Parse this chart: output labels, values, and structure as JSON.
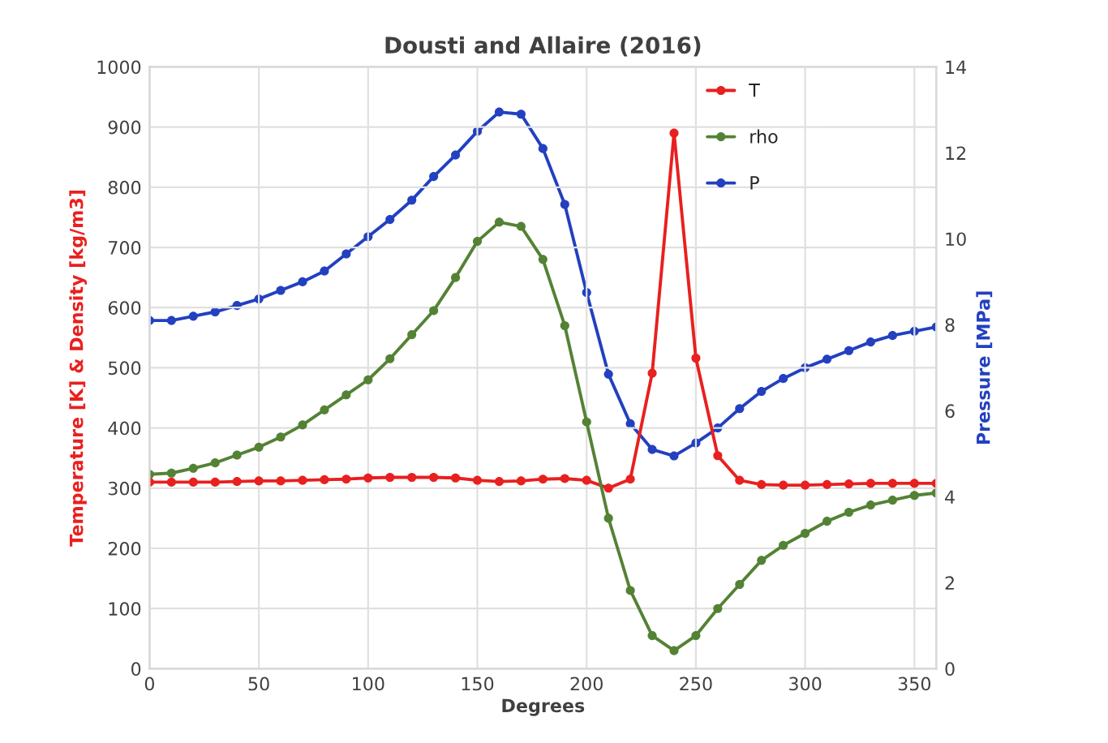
{
  "chart_data": {
    "type": "line",
    "title": "Dousti and Allaire (2016)",
    "xlabel": "Degrees",
    "ylabel": "Temperature [K] & Density [kg/m3]",
    "y2label": "Pressure [MPa]",
    "x": [
      0,
      10,
      20,
      30,
      40,
      50,
      60,
      70,
      80,
      90,
      100,
      110,
      120,
      130,
      140,
      150,
      160,
      170,
      180,
      190,
      200,
      210,
      220,
      230,
      240,
      250,
      260,
      270,
      280,
      290,
      300,
      310,
      320,
      330,
      340,
      350,
      360
    ],
    "series": [
      {
        "name": "T",
        "color": "#e8201f",
        "values": [
          310,
          310,
          310,
          310,
          311,
          312,
          312,
          313,
          314,
          315,
          317,
          318,
          318,
          318,
          317,
          313,
          311,
          312,
          315,
          316,
          313,
          300,
          315,
          491,
          890,
          516,
          354,
          313,
          306,
          305,
          305,
          306,
          307,
          308,
          308,
          308,
          308
        ]
      },
      {
        "name": "rho",
        "color": "#548235",
        "values": [
          323,
          325,
          333,
          342,
          355,
          368,
          385,
          405,
          430,
          455,
          480,
          515,
          555,
          595,
          650,
          710,
          742,
          735,
          680,
          570,
          410,
          250,
          130,
          55,
          30,
          55,
          100,
          140,
          180,
          205,
          225,
          245,
          260,
          272,
          280,
          288,
          292
        ]
      },
      {
        "name": "P",
        "color": "#2240c0",
        "axis": "y2",
        "values": [
          8.1,
          8.1,
          8.2,
          8.3,
          8.45,
          8.6,
          8.8,
          9.0,
          9.25,
          9.65,
          10.05,
          10.45,
          10.9,
          11.45,
          11.95,
          12.5,
          12.95,
          12.9,
          12.1,
          10.8,
          8.75,
          6.85,
          5.7,
          5.1,
          4.95,
          5.25,
          5.6,
          6.05,
          6.45,
          6.75,
          7.0,
          7.2,
          7.4,
          7.6,
          7.75,
          7.85,
          7.95
        ]
      }
    ],
    "xlim": [
      0,
      360
    ],
    "xticks": [
      0,
      50,
      100,
      150,
      200,
      250,
      300,
      350
    ],
    "ylim": [
      0,
      1000
    ],
    "yticks": [
      0,
      100,
      200,
      300,
      400,
      500,
      600,
      700,
      800,
      900,
      1000
    ],
    "y2lim": [
      0,
      14
    ],
    "y2ticks": [
      0,
      2,
      4,
      6,
      8,
      10,
      12,
      14
    ],
    "grid": true,
    "legend": "top right",
    "marker": "circle",
    "line_style": "solid"
  }
}
